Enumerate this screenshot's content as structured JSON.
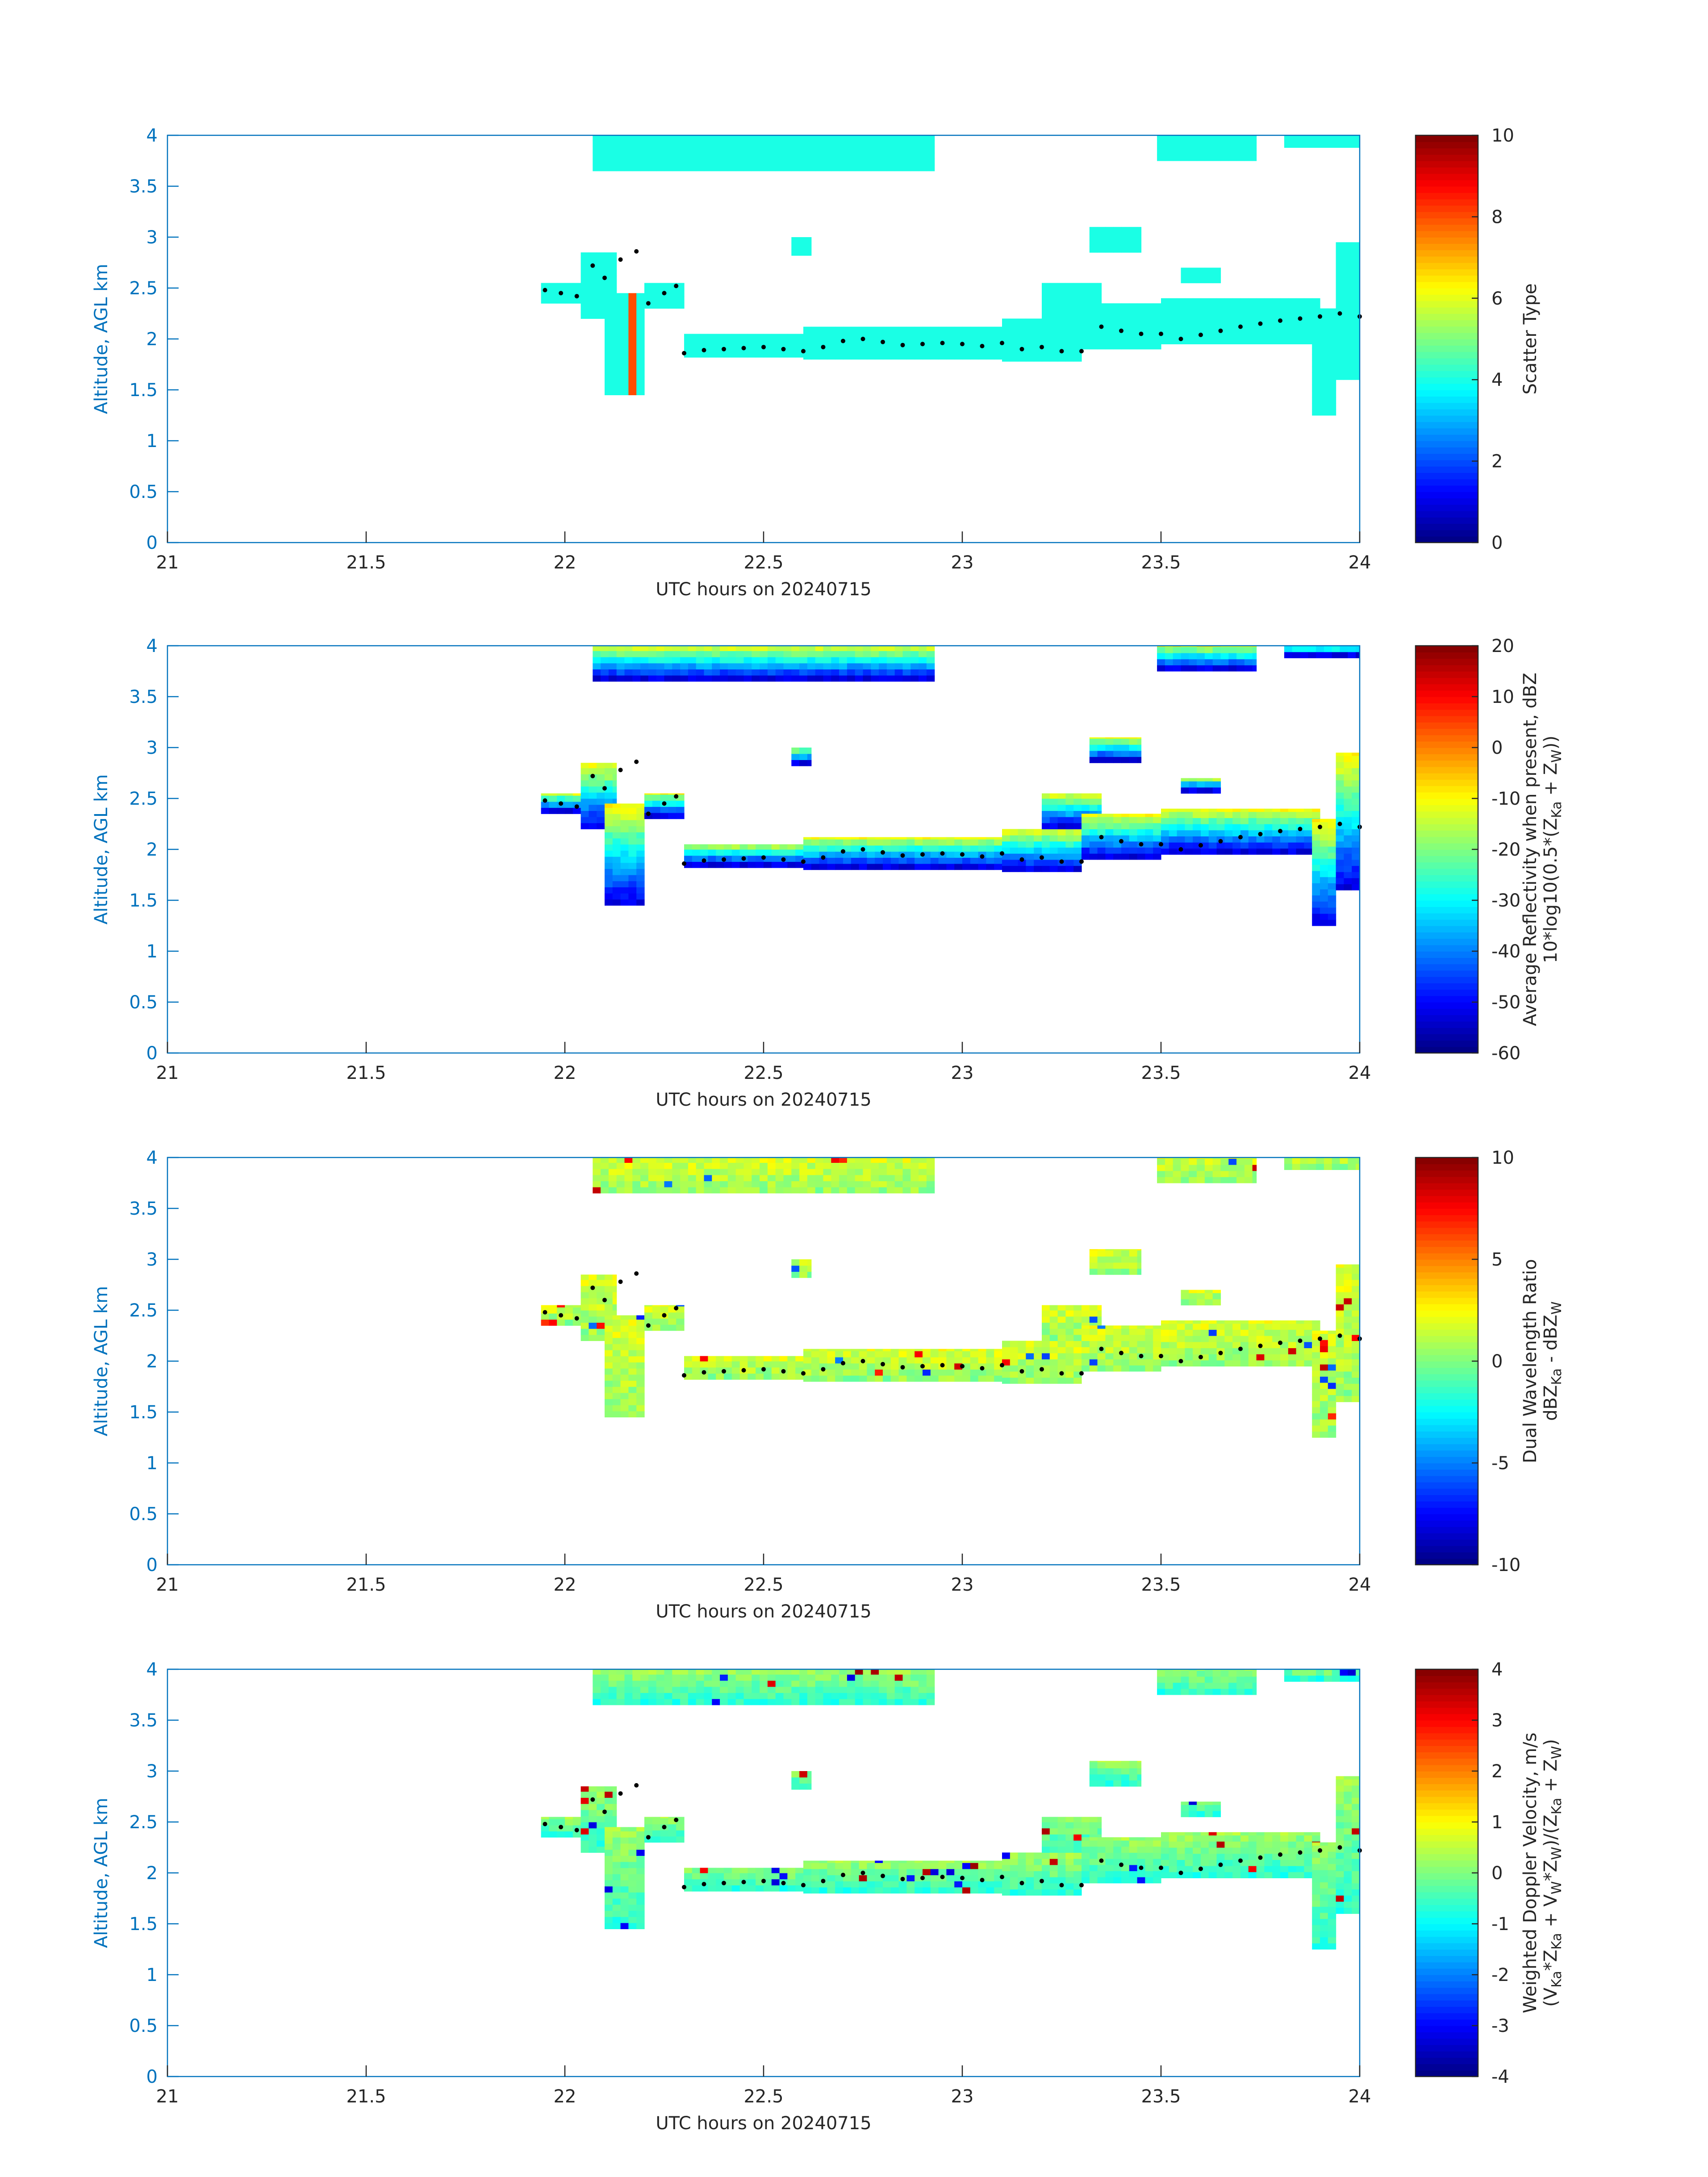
{
  "chart_data": [
    {
      "type": "heatmap",
      "xlabel": "UTC hours on 20240715",
      "ylabel": "Altitude, AGL km",
      "xlim": [
        21,
        24
      ],
      "ylim": [
        0,
        4
      ],
      "xticks": [
        "21",
        "21.5",
        "22",
        "22.5",
        "23",
        "23.5",
        "24"
      ],
      "yticks": [
        "0",
        "0.5",
        "1",
        "1.5",
        "2",
        "2.5",
        "3",
        "3.5",
        "4"
      ],
      "colorbar": {
        "label": [
          "Scatter Type"
        ],
        "range": [
          0,
          10
        ],
        "ticks": [
          "0",
          "2",
          "4",
          "6",
          "8",
          "10"
        ]
      },
      "cloud_value_note": "most cloud pixels scatter type ~4; columns near 22.15-22.2 h between 1.4-2.4 km type ~8"
    },
    {
      "type": "heatmap",
      "xlabel": "UTC hours on 20240715",
      "ylabel": "Altitude, AGL km",
      "xlim": [
        21,
        24
      ],
      "ylim": [
        0,
        4
      ],
      "xticks": [
        "21",
        "21.5",
        "22",
        "22.5",
        "23",
        "23.5",
        "24"
      ],
      "yticks": [
        "0",
        "0.5",
        "1",
        "1.5",
        "2",
        "2.5",
        "3",
        "3.5",
        "4"
      ],
      "colorbar": {
        "label": [
          "Average Reflectivity when present, dBZ",
          "10*log10(0.5*(Z_Ka + Z_W))"
        ],
        "range": [
          -60,
          20
        ],
        "ticks": [
          "-60",
          "-50",
          "-40",
          "-30",
          "-20",
          "-10",
          "0",
          "10",
          "20"
        ]
      }
    },
    {
      "type": "heatmap",
      "xlabel": "UTC hours on 20240715",
      "ylabel": "Altitude, AGL km",
      "xlim": [
        21,
        24
      ],
      "ylim": [
        0,
        4
      ],
      "xticks": [
        "21",
        "21.5",
        "22",
        "22.5",
        "23",
        "23.5",
        "24"
      ],
      "yticks": [
        "0",
        "0.5",
        "1",
        "1.5",
        "2",
        "2.5",
        "3",
        "3.5",
        "4"
      ],
      "colorbar": {
        "label": [
          "Dual Wavelength Ratio",
          "dBZ_Ka - dBZ_W"
        ],
        "range": [
          -10,
          10
        ],
        "ticks": [
          "-10",
          "-5",
          "0",
          "5",
          "10"
        ]
      }
    },
    {
      "type": "heatmap",
      "xlabel": "UTC hours on 20240715",
      "ylabel": "Altitude, AGL km",
      "xlim": [
        21,
        24
      ],
      "ylim": [
        0,
        4
      ],
      "xticks": [
        "21",
        "21.5",
        "22",
        "22.5",
        "23",
        "23.5",
        "24"
      ],
      "yticks": [
        "0",
        "0.5",
        "1",
        "1.5",
        "2",
        "2.5",
        "3",
        "3.5",
        "4"
      ],
      "colorbar": {
        "label": [
          "Weighted Doppler Velocity, m/s",
          "(V_Ka*Z_Ka + V_W*Z_W)/(Z_Ka + Z_W)"
        ],
        "range": [
          -4,
          4
        ],
        "ticks": [
          "-4",
          "-3",
          "-2",
          "-1",
          "0",
          "1",
          "2",
          "3",
          "4"
        ]
      }
    }
  ],
  "cloud_regions": [
    {
      "x0": 22.07,
      "x1": 22.93,
      "ybot": 3.65,
      "ytop": 4.0
    },
    {
      "x0": 23.49,
      "x1": 23.74,
      "ybot": 3.75,
      "ytop": 4.0
    },
    {
      "x0": 23.81,
      "x1": 24.0,
      "ybot": 3.88,
      "ytop": 4.0
    },
    {
      "x0": 21.94,
      "x1": 22.04,
      "ybot": 2.35,
      "ytop": 2.55
    },
    {
      "x0": 22.04,
      "x1": 22.13,
      "ybot": 2.2,
      "ytop": 2.85
    },
    {
      "x0": 22.1,
      "x1": 22.2,
      "ybot": 1.45,
      "ytop": 2.45
    },
    {
      "x0": 22.2,
      "x1": 22.3,
      "ybot": 2.3,
      "ytop": 2.55
    },
    {
      "x0": 22.3,
      "x1": 22.6,
      "ybot": 1.82,
      "ytop": 2.05
    },
    {
      "x0": 22.6,
      "x1": 23.1,
      "ybot": 1.8,
      "ytop": 2.12
    },
    {
      "x0": 23.1,
      "x1": 23.3,
      "ybot": 1.78,
      "ytop": 2.2
    },
    {
      "x0": 23.2,
      "x1": 23.35,
      "ybot": 2.2,
      "ytop": 2.55
    },
    {
      "x0": 23.3,
      "x1": 23.5,
      "ybot": 1.9,
      "ytop": 2.35
    },
    {
      "x0": 23.5,
      "x1": 23.9,
      "ybot": 1.95,
      "ytop": 2.4
    },
    {
      "x0": 23.32,
      "x1": 23.45,
      "ybot": 2.85,
      "ytop": 3.1
    },
    {
      "x0": 23.55,
      "x1": 23.65,
      "ybot": 2.55,
      "ytop": 2.7
    },
    {
      "x0": 23.88,
      "x1": 23.94,
      "ybot": 1.25,
      "ytop": 2.3
    },
    {
      "x0": 23.94,
      "x1": 24.0,
      "ybot": 1.6,
      "ytop": 2.95
    },
    {
      "x0": 22.57,
      "x1": 22.62,
      "ybot": 2.82,
      "ytop": 3.0
    }
  ],
  "cloud_base_points": [
    [
      21.95,
      2.48
    ],
    [
      21.99,
      2.45
    ],
    [
      22.03,
      2.42
    ],
    [
      22.07,
      2.72
    ],
    [
      22.1,
      2.6
    ],
    [
      22.14,
      2.78
    ],
    [
      22.18,
      2.86
    ],
    [
      22.21,
      2.35
    ],
    [
      22.25,
      2.45
    ],
    [
      22.28,
      2.52
    ],
    [
      22.3,
      1.86
    ],
    [
      22.35,
      1.89
    ],
    [
      22.4,
      1.9
    ],
    [
      22.45,
      1.91
    ],
    [
      22.5,
      1.92
    ],
    [
      22.55,
      1.9
    ],
    [
      22.6,
      1.88
    ],
    [
      22.65,
      1.92
    ],
    [
      22.7,
      1.98
    ],
    [
      22.75,
      2.0
    ],
    [
      22.8,
      1.97
    ],
    [
      22.85,
      1.94
    ],
    [
      22.9,
      1.95
    ],
    [
      22.95,
      1.96
    ],
    [
      23.0,
      1.95
    ],
    [
      23.05,
      1.93
    ],
    [
      23.1,
      1.96
    ],
    [
      23.15,
      1.9
    ],
    [
      23.2,
      1.92
    ],
    [
      23.25,
      1.88
    ],
    [
      23.3,
      1.88
    ],
    [
      23.35,
      2.12
    ],
    [
      23.4,
      2.08
    ],
    [
      23.45,
      2.05
    ],
    [
      23.5,
      2.05
    ],
    [
      23.55,
      2.0
    ],
    [
      23.6,
      2.04
    ],
    [
      23.65,
      2.08
    ],
    [
      23.7,
      2.12
    ],
    [
      23.75,
      2.15
    ],
    [
      23.8,
      2.18
    ],
    [
      23.85,
      2.2
    ],
    [
      23.9,
      2.22
    ],
    [
      23.95,
      2.25
    ],
    [
      24.0,
      2.22
    ]
  ]
}
